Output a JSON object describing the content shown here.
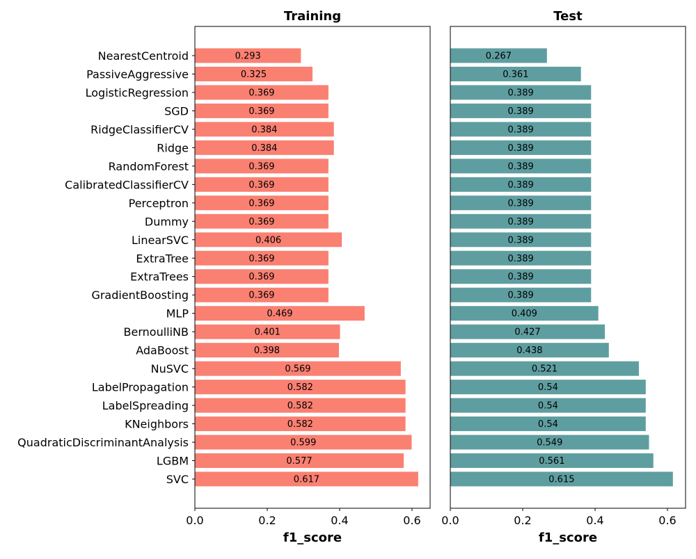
{
  "chart_data": [
    {
      "type": "bar",
      "orientation": "horizontal",
      "title": "Training",
      "xlabel": "f1_score",
      "xlim": [
        0,
        0.65
      ],
      "xticks": [
        "0.0",
        "0.2",
        "0.4",
        "0.6"
      ],
      "bar_color": "#fa8072",
      "categories": [
        "NearestCentroid",
        "PassiveAggressive",
        "LogisticRegression",
        "SGD",
        "RidgeClassifierCV",
        "Ridge",
        "RandomForest",
        "CalibratedClassifierCV",
        "Perceptron",
        "Dummy",
        "LinearSVC",
        "ExtraTree",
        "ExtraTrees",
        "GradientBoosting",
        "MLP",
        "BernoulliNB",
        "AdaBoost",
        "NuSVC",
        "LabelPropagation",
        "LabelSpreading",
        "KNeighbors",
        "QuadraticDiscriminantAnalysis",
        "LGBM",
        "SVC"
      ],
      "values": [
        0.293,
        0.325,
        0.369,
        0.369,
        0.384,
        0.384,
        0.369,
        0.369,
        0.369,
        0.369,
        0.406,
        0.369,
        0.369,
        0.369,
        0.469,
        0.401,
        0.398,
        0.569,
        0.582,
        0.582,
        0.582,
        0.599,
        0.577,
        0.617
      ],
      "value_labels": [
        "0.293",
        "0.325",
        "0.369",
        "0.369",
        "0.384",
        "0.384",
        "0.369",
        "0.369",
        "0.369",
        "0.369",
        "0.406",
        "0.369",
        "0.369",
        "0.369",
        "0.469",
        "0.401",
        "0.398",
        "0.569",
        "0.582",
        "0.582",
        "0.582",
        "0.599",
        "0.577",
        "0.617"
      ]
    },
    {
      "type": "bar",
      "orientation": "horizontal",
      "title": "Test",
      "xlabel": "f1_score",
      "xlim": [
        0,
        0.65
      ],
      "xticks": [
        "0.0",
        "0.2",
        "0.4",
        "0.6"
      ],
      "bar_color": "#5f9ea0",
      "categories": [
        "NearestCentroid",
        "PassiveAggressive",
        "LogisticRegression",
        "SGD",
        "RidgeClassifierCV",
        "Ridge",
        "RandomForest",
        "CalibratedClassifierCV",
        "Perceptron",
        "Dummy",
        "LinearSVC",
        "ExtraTree",
        "ExtraTrees",
        "GradientBoosting",
        "MLP",
        "BernoulliNB",
        "AdaBoost",
        "NuSVC",
        "LabelPropagation",
        "LabelSpreading",
        "KNeighbors",
        "QuadraticDiscriminantAnalysis",
        "LGBM",
        "SVC"
      ],
      "values": [
        0.267,
        0.361,
        0.389,
        0.389,
        0.389,
        0.389,
        0.389,
        0.389,
        0.389,
        0.389,
        0.389,
        0.389,
        0.389,
        0.389,
        0.409,
        0.427,
        0.438,
        0.521,
        0.54,
        0.54,
        0.54,
        0.549,
        0.561,
        0.615
      ],
      "value_labels": [
        "0.267",
        "0.361",
        "0.389",
        "0.389",
        "0.389",
        "0.389",
        "0.389",
        "0.389",
        "0.389",
        "0.389",
        "0.389",
        "0.389",
        "0.389",
        "0.389",
        "0.409",
        "0.427",
        "0.438",
        "0.521",
        "0.54",
        "0.54",
        "0.54",
        "0.549",
        "0.561",
        "0.615"
      ]
    }
  ]
}
